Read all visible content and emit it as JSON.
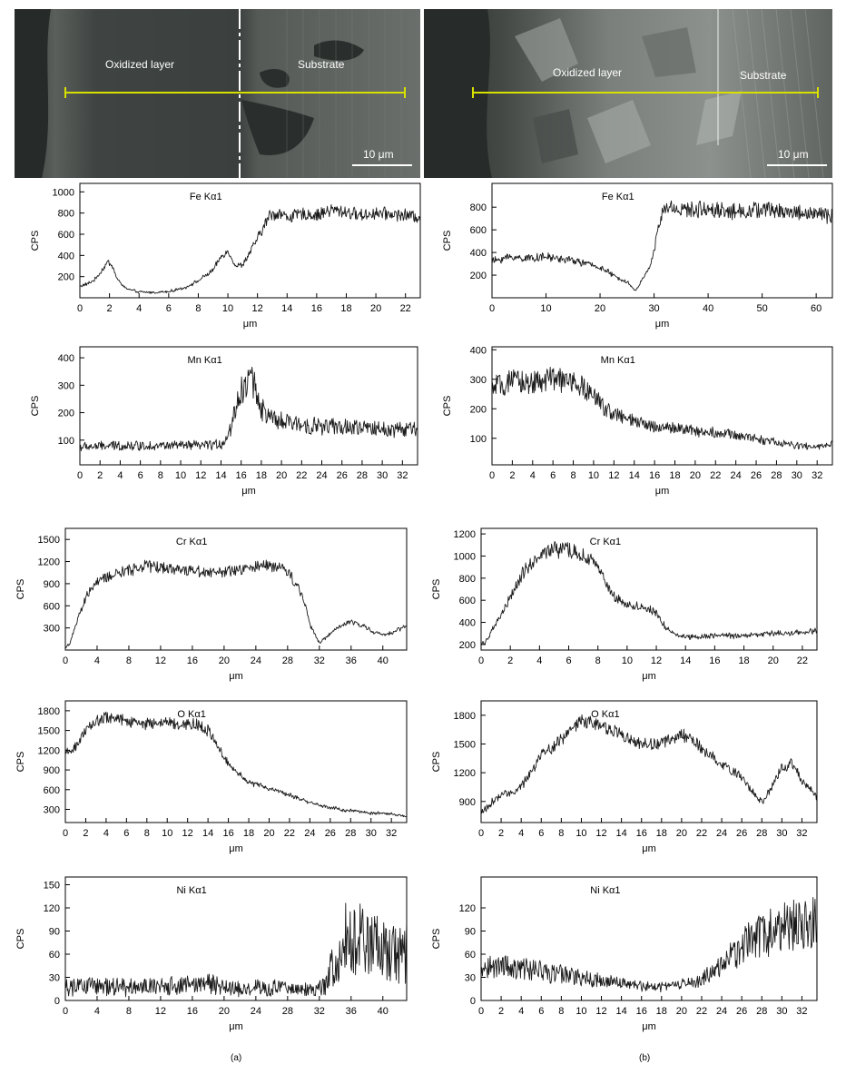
{
  "images": [
    {
      "region_left": "Oxidized layer",
      "region_right": "Substrate",
      "scale_bar": "10 μm"
    },
    {
      "region_left": "Oxidized layer",
      "region_right": "Substrate",
      "scale_bar": "10 μm"
    }
  ],
  "captions": [
    "(a)",
    "(b)"
  ],
  "colors": {
    "trace": "#1a1a1a",
    "line_scan": "#d8e000",
    "sem_dark": "#3d4340"
  },
  "chart_data": [
    {
      "type": "line",
      "column": "a",
      "row": 0,
      "title": "Fe Kα1",
      "xlabel": "μm",
      "ylabel": "CPS",
      "xlim": [
        0,
        23
      ],
      "ylim": [
        0,
        1080
      ],
      "xticks": [
        0,
        2,
        4,
        6,
        8,
        10,
        12,
        14,
        16,
        18,
        20,
        22
      ],
      "yticks": [
        200,
        400,
        600,
        800,
        1000
      ],
      "noise": 0.07,
      "x": [
        0,
        0.5,
        1,
        1.5,
        1.9,
        2.2,
        2.5,
        3,
        3.5,
        4,
        5,
        6,
        7,
        8,
        9,
        9.5,
        9.9,
        10.2,
        10.5,
        11,
        11.5,
        12,
        12.4,
        12.8,
        13.5,
        14,
        15,
        16,
        17,
        18,
        19,
        20,
        21,
        22,
        23
      ],
      "y": [
        110,
        130,
        170,
        260,
        340,
        300,
        180,
        100,
        70,
        55,
        50,
        60,
        90,
        160,
        260,
        380,
        440,
        400,
        300,
        310,
        430,
        560,
        660,
        780,
        800,
        760,
        790,
        780,
        830,
        810,
        780,
        800,
        790,
        780,
        760
      ]
    },
    {
      "type": "line",
      "column": "b",
      "row": 0,
      "title": "Fe Kα1",
      "xlabel": "μm",
      "ylabel": "CPS",
      "xlim": [
        0,
        63
      ],
      "ylim": [
        0,
        1010
      ],
      "xticks": [
        0,
        10,
        20,
        30,
        40,
        50,
        60
      ],
      "yticks": [
        200,
        400,
        600,
        800
      ],
      "noise": 0.09,
      "x": [
        0,
        3,
        6,
        10,
        15,
        20,
        23,
        25,
        26.5,
        27.5,
        28.5,
        29.5,
        30.5,
        31.5,
        33,
        36,
        40,
        45,
        50,
        55,
        60,
        63
      ],
      "y": [
        320,
        360,
        350,
        360,
        330,
        270,
        180,
        140,
        60,
        130,
        230,
        300,
        540,
        760,
        800,
        770,
        790,
        760,
        780,
        760,
        740,
        720
      ]
    },
    {
      "type": "line",
      "column": "a",
      "row": 1,
      "title": "Mn Kα1",
      "xlabel": "μm",
      "ylabel": "CPS",
      "xlim": [
        0,
        33.5
      ],
      "ylim": [
        10,
        440
      ],
      "xticks": [
        0,
        2,
        4,
        6,
        8,
        10,
        12,
        14,
        16,
        18,
        20,
        22,
        24,
        26,
        28,
        30,
        32
      ],
      "yticks": [
        100,
        200,
        300,
        400
      ],
      "noise": 0.2,
      "x": [
        0,
        4,
        8,
        12,
        14,
        14.8,
        15.5,
        16.3,
        17,
        17.5,
        18,
        18.7,
        19.5,
        21,
        24,
        27,
        30,
        33.5
      ],
      "y": [
        75,
        80,
        80,
        80,
        85,
        120,
        230,
        300,
        330,
        280,
        220,
        180,
        170,
        160,
        150,
        145,
        140,
        140
      ]
    },
    {
      "type": "line",
      "column": "b",
      "row": 1,
      "title": "Mn Kα1",
      "xlabel": "μm",
      "ylabel": "CPS",
      "xlim": [
        0,
        33.5
      ],
      "ylim": [
        10,
        410
      ],
      "xticks": [
        0,
        2,
        4,
        6,
        8,
        10,
        12,
        14,
        16,
        18,
        20,
        22,
        24,
        26,
        28,
        30,
        32
      ],
      "yticks": [
        100,
        200,
        300,
        400
      ],
      "noise": 0.14,
      "x": [
        0,
        2,
        4,
        6,
        8,
        9,
        10,
        11,
        12,
        13,
        14,
        16,
        18,
        20,
        22,
        24,
        26,
        28,
        30,
        32,
        33.5
      ],
      "y": [
        270,
        290,
        290,
        300,
        290,
        270,
        240,
        210,
        180,
        170,
        155,
        140,
        135,
        125,
        120,
        110,
        100,
        85,
        75,
        70,
        80
      ]
    },
    {
      "type": "line",
      "column": "a",
      "row": 2,
      "title": "Cr Kα1",
      "xlabel": "μm",
      "ylabel": "CPS",
      "xlim": [
        0,
        43
      ],
      "ylim": [
        0,
        1650
      ],
      "xticks": [
        0,
        4,
        8,
        12,
        16,
        20,
        24,
        28,
        32,
        36,
        40
      ],
      "yticks": [
        300,
        600,
        900,
        1200,
        1500
      ],
      "noise": 0.07,
      "x": [
        0,
        0.5,
        1,
        2,
        3,
        4,
        6,
        8,
        10,
        12,
        16,
        20,
        24,
        26,
        28,
        29,
        30,
        31,
        32,
        33,
        34,
        35,
        36,
        37,
        38,
        39,
        40,
        41,
        42,
        43
      ],
      "y": [
        40,
        80,
        230,
        550,
        800,
        920,
        1020,
        1080,
        1150,
        1120,
        1080,
        1050,
        1120,
        1150,
        1080,
        900,
        700,
        300,
        100,
        180,
        280,
        340,
        380,
        360,
        300,
        240,
        200,
        230,
        280,
        330
      ]
    },
    {
      "type": "line",
      "column": "b",
      "row": 2,
      "title": "Cr Kα1",
      "xlabel": "μm",
      "ylabel": "CPS",
      "xlim": [
        0,
        23
      ],
      "ylim": [
        150,
        1250
      ],
      "xticks": [
        0,
        2,
        4,
        6,
        8,
        10,
        12,
        14,
        16,
        18,
        20,
        22
      ],
      "yticks": [
        200,
        400,
        600,
        800,
        1000,
        1200
      ],
      "noise": 0.07,
      "x": [
        0,
        0.5,
        1,
        2,
        3,
        4,
        5,
        6,
        7,
        8,
        8.5,
        9,
        10,
        11,
        12,
        12.5,
        13,
        14,
        16,
        18,
        20,
        22,
        23
      ],
      "y": [
        200,
        260,
        380,
        620,
        880,
        1000,
        1060,
        1050,
        1000,
        900,
        780,
        640,
        560,
        540,
        480,
        380,
        310,
        270,
        280,
        280,
        300,
        310,
        330
      ]
    },
    {
      "type": "line",
      "column": "a",
      "row": 3,
      "title": "O Kα1",
      "xlabel": "μm",
      "ylabel": "CPS",
      "xlim": [
        0,
        33.5
      ],
      "ylim": [
        100,
        1950
      ],
      "xticks": [
        0,
        2,
        4,
        6,
        8,
        10,
        12,
        14,
        16,
        18,
        20,
        22,
        24,
        26,
        28,
        30,
        32
      ],
      "yticks": [
        300,
        600,
        900,
        1200,
        1500,
        1800
      ],
      "noise": 0.05,
      "x": [
        0,
        1,
        2,
        3,
        4,
        6,
        8,
        10,
        12,
        13,
        14,
        15,
        16,
        17,
        18,
        20,
        22,
        24,
        26,
        28,
        30,
        32,
        33.5
      ],
      "y": [
        1150,
        1250,
        1500,
        1650,
        1700,
        1650,
        1600,
        1620,
        1600,
        1580,
        1500,
        1250,
        1000,
        850,
        720,
        620,
        520,
        400,
        320,
        280,
        240,
        230,
        190
      ]
    },
    {
      "type": "line",
      "column": "b",
      "row": 3,
      "title": "O Kα1",
      "xlabel": "μm",
      "ylabel": "CPS",
      "xlim": [
        0,
        33.5
      ],
      "ylim": [
        680,
        1950
      ],
      "xticks": [
        0,
        2,
        4,
        6,
        8,
        10,
        12,
        14,
        16,
        18,
        20,
        22,
        24,
        26,
        28,
        30,
        32
      ],
      "yticks": [
        900,
        1200,
        1500,
        1800
      ],
      "noise": 0.04,
      "x": [
        0,
        1,
        2,
        3,
        4,
        5,
        6,
        7,
        8,
        9,
        10,
        12,
        14,
        16,
        18,
        20,
        21,
        22,
        24,
        26,
        27,
        28,
        29,
        30,
        31,
        32,
        33.5
      ],
      "y": [
        780,
        880,
        960,
        1000,
        1050,
        1200,
        1400,
        1450,
        1550,
        1650,
        1750,
        1700,
        1600,
        1500,
        1500,
        1600,
        1550,
        1450,
        1300,
        1150,
        1000,
        900,
        1050,
        1250,
        1300,
        1120,
        950
      ]
    },
    {
      "type": "line",
      "column": "a",
      "row": 4,
      "title": "Ni Kα1",
      "xlabel": "μm",
      "ylabel": "CPS",
      "xlim": [
        0,
        43
      ],
      "ylim": [
        0,
        160
      ],
      "xticks": [
        0,
        4,
        8,
        12,
        16,
        20,
        24,
        28,
        32,
        36,
        40
      ],
      "yticks": [
        0,
        30,
        60,
        90,
        120,
        150
      ],
      "noise": 0.65,
      "x": [
        0,
        4,
        8,
        12,
        16,
        18,
        20,
        24,
        28,
        32,
        33,
        34,
        35,
        36,
        37,
        38,
        40,
        42,
        43
      ],
      "y": [
        18,
        18,
        17,
        18,
        20,
        22,
        16,
        17,
        16,
        15,
        25,
        55,
        75,
        85,
        80,
        70,
        65,
        60,
        62
      ]
    },
    {
      "type": "line",
      "column": "b",
      "row": 4,
      "title": "Ni Kα1",
      "xlabel": "μm",
      "ylabel": "CPS",
      "xlim": [
        0,
        33.5
      ],
      "ylim": [
        0,
        160
      ],
      "xticks": [
        0,
        2,
        4,
        6,
        8,
        10,
        12,
        14,
        16,
        18,
        20,
        22,
        24,
        26,
        28,
        30,
        32
      ],
      "yticks": [
        0,
        30,
        60,
        90,
        120
      ],
      "noise": 0.35,
      "x": [
        0,
        2,
        4,
        6,
        8,
        10,
        12,
        14,
        16,
        18,
        20,
        22,
        24,
        26,
        28,
        30,
        32,
        33.5
      ],
      "y": [
        45,
        45,
        40,
        38,
        34,
        30,
        26,
        22,
        18,
        17,
        20,
        28,
        45,
        70,
        85,
        95,
        100,
        110
      ]
    }
  ]
}
